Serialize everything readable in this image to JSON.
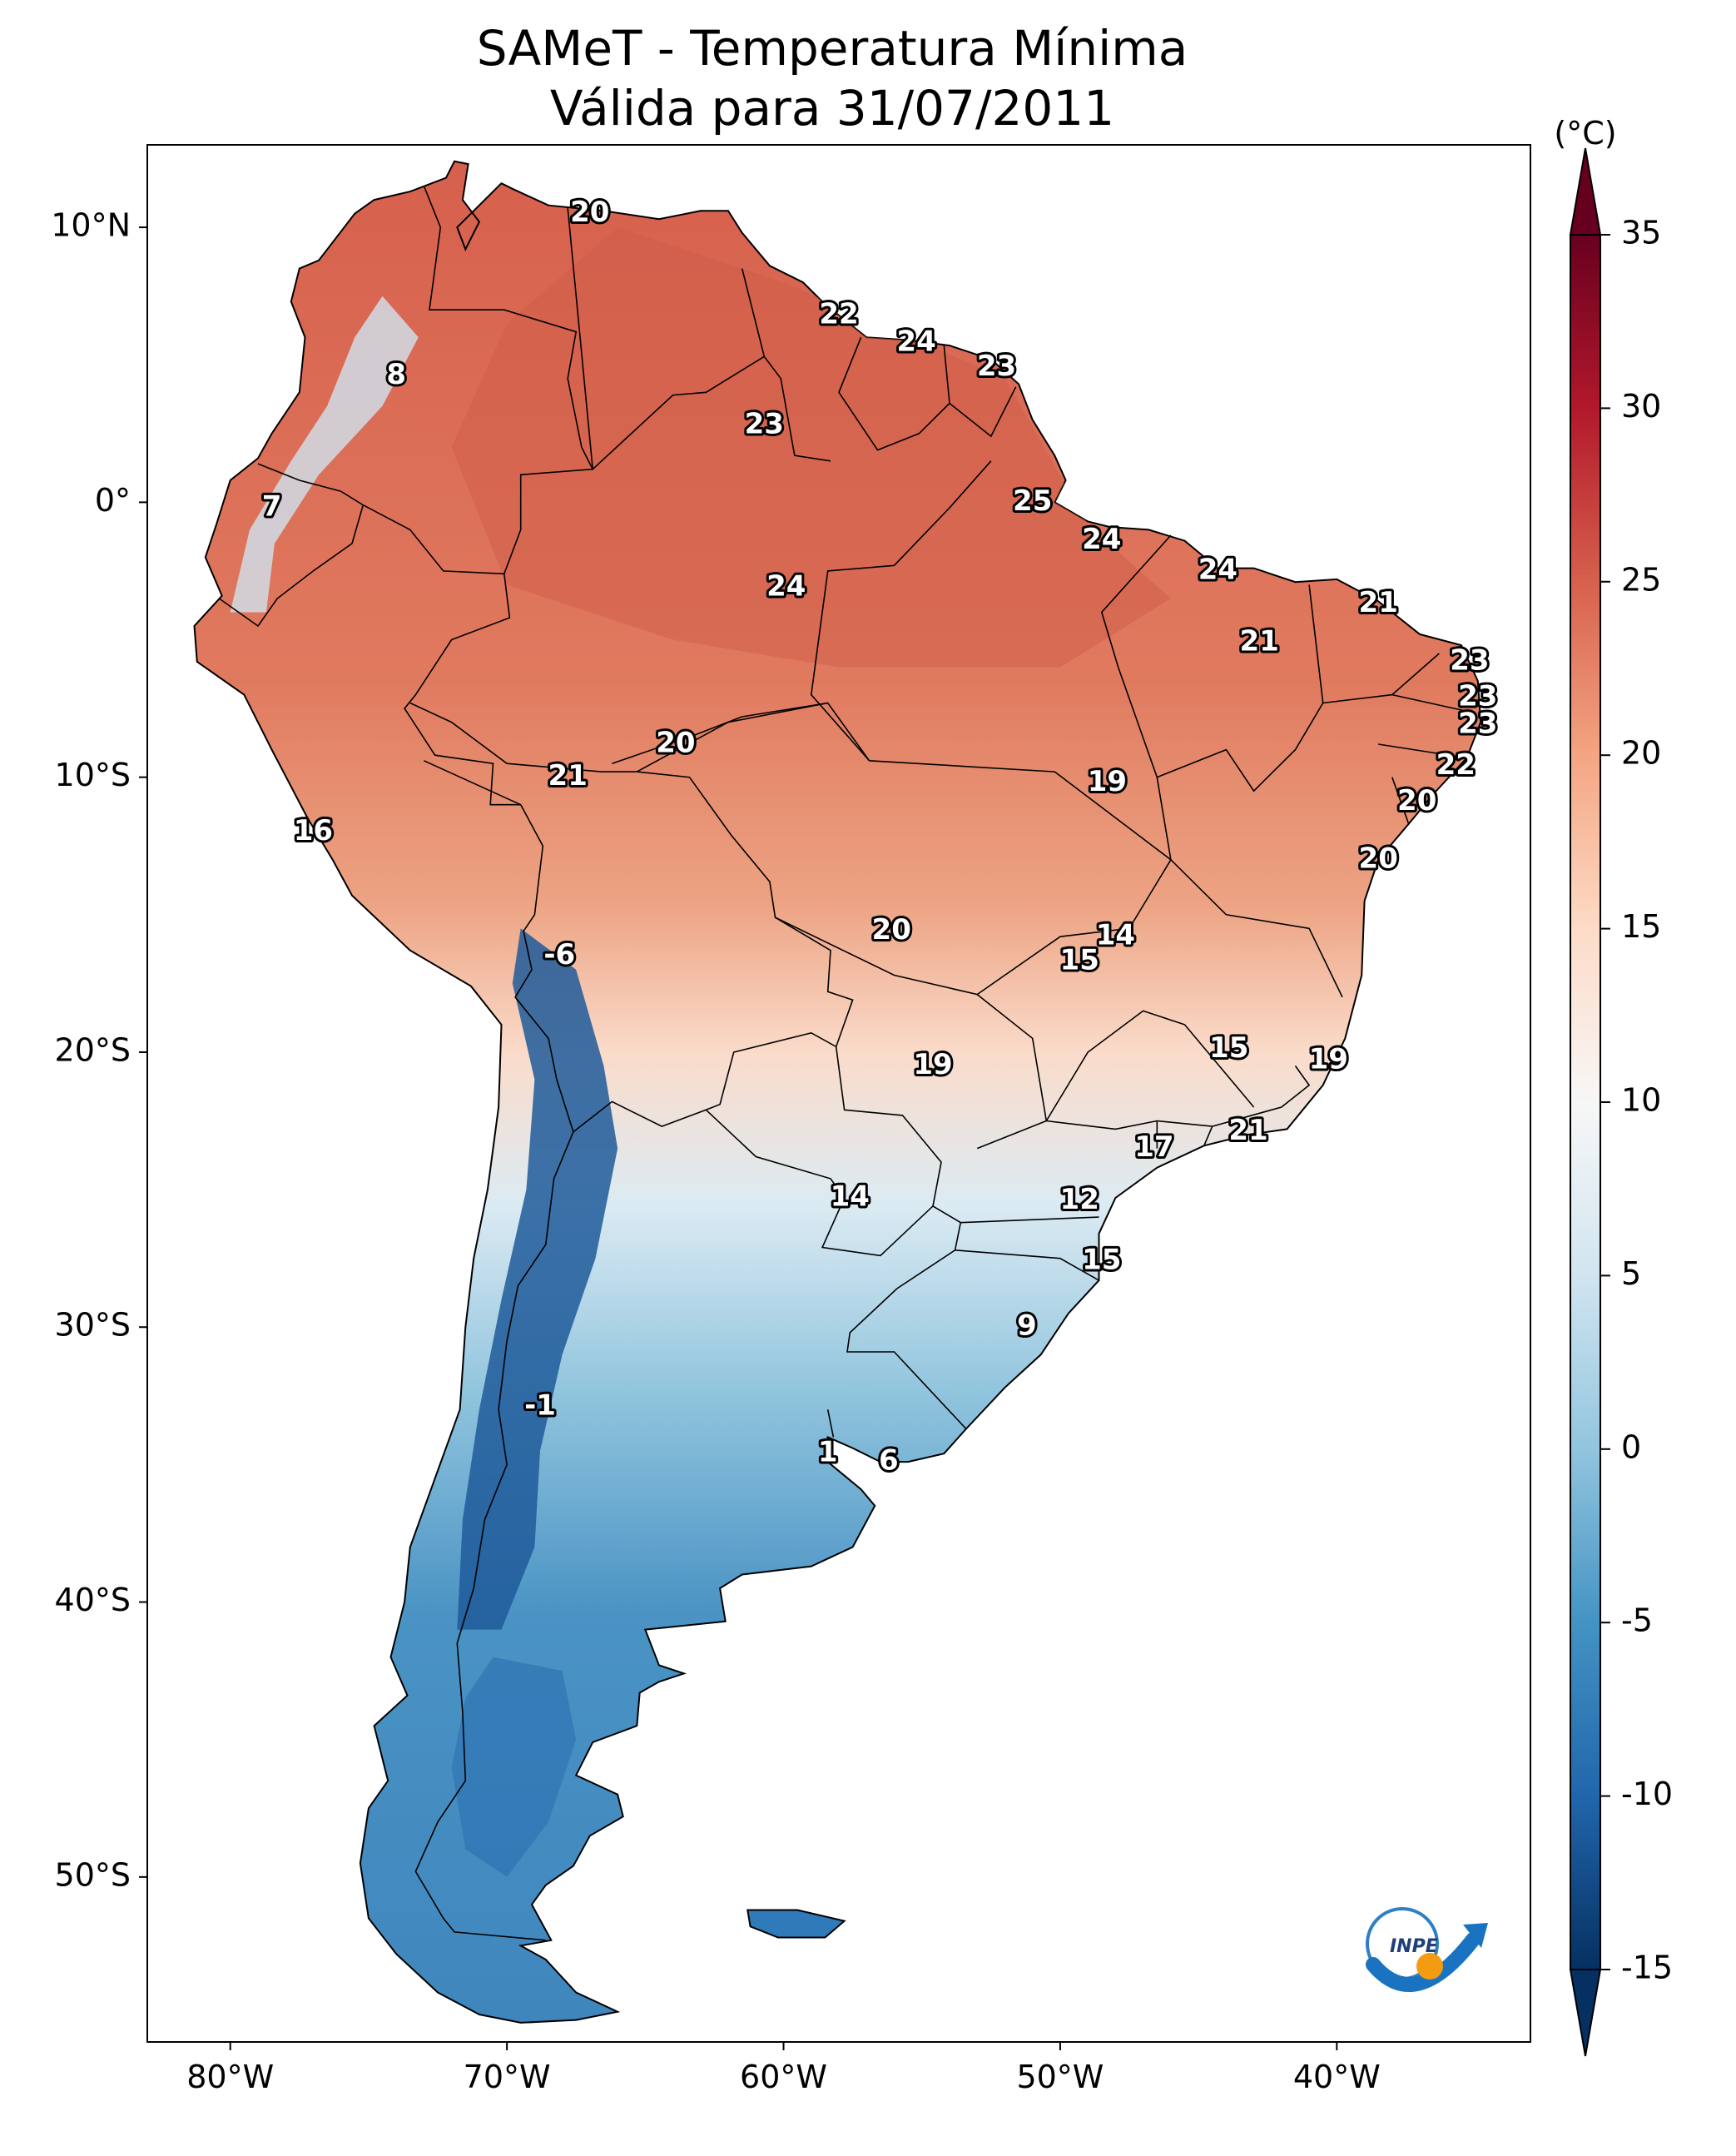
{
  "title": {
    "line1": "SAMeT - Temperatura Mínima",
    "line2": "Válida para 31/07/2011"
  },
  "colorbar": {
    "unit": "(°C)",
    "min": -15,
    "max": 35,
    "extend": "both",
    "ticks": [
      {
        "value": 35,
        "label": "35"
      },
      {
        "value": 30,
        "label": "30"
      },
      {
        "value": 25,
        "label": "25"
      },
      {
        "value": 20,
        "label": "20"
      },
      {
        "value": 15,
        "label": "15"
      },
      {
        "value": 10,
        "label": "10"
      },
      {
        "value": 5,
        "label": "5"
      },
      {
        "value": 0,
        "label": "0"
      },
      {
        "value": -5,
        "label": "-5"
      },
      {
        "value": -10,
        "label": "-10"
      },
      {
        "value": -15,
        "label": "-15"
      }
    ],
    "colors": [
      "#053061",
      "#2166ac",
      "#4393c3",
      "#92c5de",
      "#d1e5f0",
      "#f7f7f7",
      "#fddbc7",
      "#f4a582",
      "#d6604d",
      "#b2182b",
      "#67001f"
    ]
  },
  "map": {
    "projection": "PlateCarree",
    "extent": {
      "lon_min": -83,
      "lon_max": -33,
      "lat_min": -56,
      "lat_max": 13
    },
    "lat_ticks": [
      {
        "value": 10,
        "label": "10°N"
      },
      {
        "value": 0,
        "label": "0°"
      },
      {
        "value": -10,
        "label": "10°S"
      },
      {
        "value": -20,
        "label": "20°S"
      },
      {
        "value": -30,
        "label": "30°S"
      },
      {
        "value": -40,
        "label": "40°S"
      },
      {
        "value": -50,
        "label": "50°S"
      }
    ],
    "lon_ticks": [
      {
        "value": -80,
        "label": "80°W"
      },
      {
        "value": -70,
        "label": "70°W"
      },
      {
        "value": -60,
        "label": "60°W"
      },
      {
        "value": -50,
        "label": "50°W"
      },
      {
        "value": -40,
        "label": "40°W"
      }
    ],
    "point_labels": [
      {
        "lon": -67,
        "lat": 10.5,
        "text": "20"
      },
      {
        "lon": -74,
        "lat": 4.6,
        "text": "8"
      },
      {
        "lon": -78.5,
        "lat": -0.2,
        "text": "7"
      },
      {
        "lon": -58,
        "lat": 6.8,
        "text": "22"
      },
      {
        "lon": -55.2,
        "lat": 5.8,
        "text": "24"
      },
      {
        "lon": -52.3,
        "lat": 4.9,
        "text": "23"
      },
      {
        "lon": -60.7,
        "lat": 2.8,
        "text": "23"
      },
      {
        "lon": -51,
        "lat": 0.0,
        "text": "25"
      },
      {
        "lon": -48.5,
        "lat": -1.4,
        "text": "24"
      },
      {
        "lon": -44.3,
        "lat": -2.5,
        "text": "24"
      },
      {
        "lon": -59.9,
        "lat": -3.1,
        "text": "24"
      },
      {
        "lon": -38.5,
        "lat": -3.7,
        "text": "21"
      },
      {
        "lon": -42.8,
        "lat": -5.1,
        "text": "21"
      },
      {
        "lon": -35.2,
        "lat": -5.8,
        "text": "23"
      },
      {
        "lon": -34.9,
        "lat": -7.1,
        "text": "23"
      },
      {
        "lon": -34.9,
        "lat": -8.1,
        "text": "23"
      },
      {
        "lon": -35.7,
        "lat": -9.6,
        "text": "22"
      },
      {
        "lon": -37.1,
        "lat": -10.9,
        "text": "20"
      },
      {
        "lon": -38.5,
        "lat": -13.0,
        "text": "20"
      },
      {
        "lon": -63.9,
        "lat": -8.8,
        "text": "20"
      },
      {
        "lon": -67.8,
        "lat": -10.0,
        "text": "21"
      },
      {
        "lon": -48.3,
        "lat": -10.2,
        "text": "19"
      },
      {
        "lon": -77.0,
        "lat": -12.0,
        "text": "16"
      },
      {
        "lon": -56.1,
        "lat": -15.6,
        "text": "20"
      },
      {
        "lon": -48.0,
        "lat": -15.8,
        "text": "14"
      },
      {
        "lon": -49.3,
        "lat": -16.7,
        "text": "15"
      },
      {
        "lon": -68.1,
        "lat": -16.5,
        "text": "-6"
      },
      {
        "lon": -54.6,
        "lat": -20.5,
        "text": "19"
      },
      {
        "lon": -43.9,
        "lat": -19.9,
        "text": "15"
      },
      {
        "lon": -40.3,
        "lat": -20.3,
        "text": "19"
      },
      {
        "lon": -43.2,
        "lat": -22.9,
        "text": "21"
      },
      {
        "lon": -46.6,
        "lat": -23.5,
        "text": "17"
      },
      {
        "lon": -57.6,
        "lat": -25.3,
        "text": "14"
      },
      {
        "lon": -49.3,
        "lat": -25.4,
        "text": "12"
      },
      {
        "lon": -48.5,
        "lat": -27.6,
        "text": "15"
      },
      {
        "lon": -51.2,
        "lat": -30.0,
        "text": "9"
      },
      {
        "lon": -68.8,
        "lat": -32.9,
        "text": "-1"
      },
      {
        "lon": -58.4,
        "lat": -34.6,
        "text": "1"
      },
      {
        "lon": -56.2,
        "lat": -34.9,
        "text": "6"
      }
    ]
  }
}
